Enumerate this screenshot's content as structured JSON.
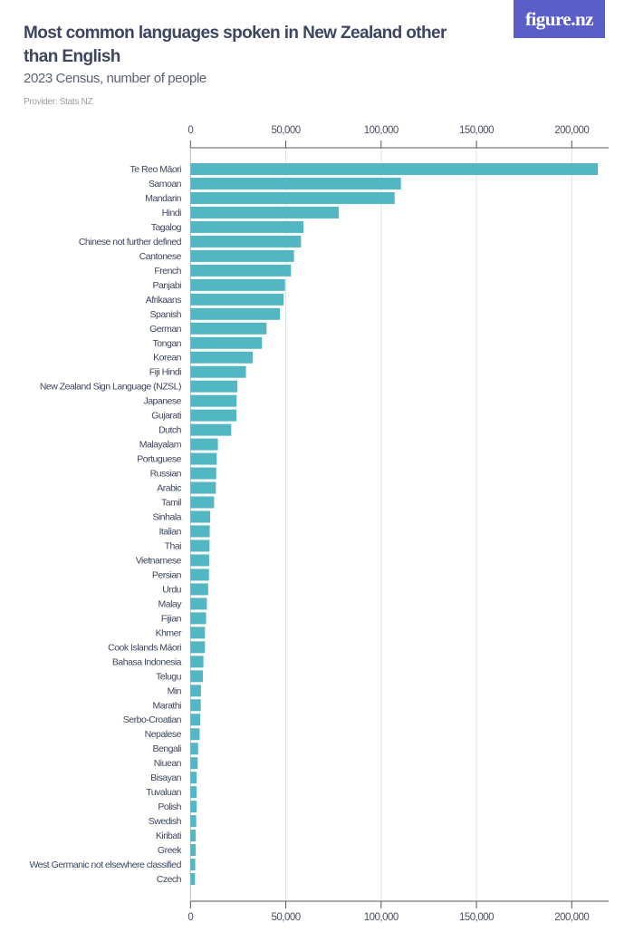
{
  "header": {
    "title": "Most common languages spoken in New Zealand other than English",
    "subtitle": "2023 Census, number of people",
    "provider": "Provider: Stats NZ",
    "logo": "figure.nz"
  },
  "colors": {
    "bar": "#52b7c3",
    "logo_bg": "#5a5fc8",
    "title": "#3c4661",
    "grid": "#e3e3e3",
    "axis": "#555555"
  },
  "chart_data": {
    "type": "bar",
    "orientation": "horizontal",
    "title": "Most common languages spoken in New Zealand other than English",
    "subtitle": "2023 Census, number of people",
    "xlabel": "",
    "ylabel": "",
    "xlim": [
      0,
      220000
    ],
    "ticks": [
      0,
      50000,
      100000,
      150000,
      200000
    ],
    "tick_labels": [
      "0",
      "50,000",
      "100,000",
      "150,000",
      "200,000"
    ],
    "grid": true,
    "axis_labels_position": "top and bottom",
    "categories": [
      "Te Reo Māori",
      "Samoan",
      "Mandarin",
      "Hindi",
      "Tagalog",
      "Chinese not further defined",
      "Cantonese",
      "French",
      "Panjabi",
      "Afrikaans",
      "Spanish",
      "German",
      "Tongan",
      "Korean",
      "Fiji Hindi",
      "New Zealand Sign Language (NZSL)",
      "Japanese",
      "Gujarati",
      "Dutch",
      "Malayalam",
      "Portuguese",
      "Russian",
      "Arabic",
      "Tamil",
      "Sinhala",
      "Italian",
      "Thai",
      "Vietnamese",
      "Persian",
      "Urdu",
      "Malay",
      "Fijian",
      "Khmer",
      "Cook Islands Māori",
      "Bahasa Indonesia",
      "Telugu",
      "Min",
      "Marathi",
      "Serbo-Croatian",
      "Nepalese",
      "Bengali",
      "Niuean",
      "Bisayan",
      "Tuvaluan",
      "Polish",
      "Swedish",
      "Kiribati",
      "Greek",
      "West Germanic not elsewhere classified",
      "Czech"
    ],
    "values": [
      213700,
      110400,
      107100,
      77800,
      59300,
      58000,
      54300,
      52700,
      49600,
      48800,
      46900,
      39900,
      37500,
      32600,
      29100,
      24600,
      24200,
      24100,
      21400,
      14400,
      13800,
      13500,
      13300,
      12400,
      10300,
      10100,
      10000,
      9800,
      9700,
      9300,
      8600,
      8200,
      7600,
      7600,
      6800,
      6500,
      5500,
      5400,
      5100,
      4800,
      4000,
      3800,
      3200,
      3200,
      3200,
      3000,
      2700,
      2700,
      2500,
      2400
    ]
  }
}
